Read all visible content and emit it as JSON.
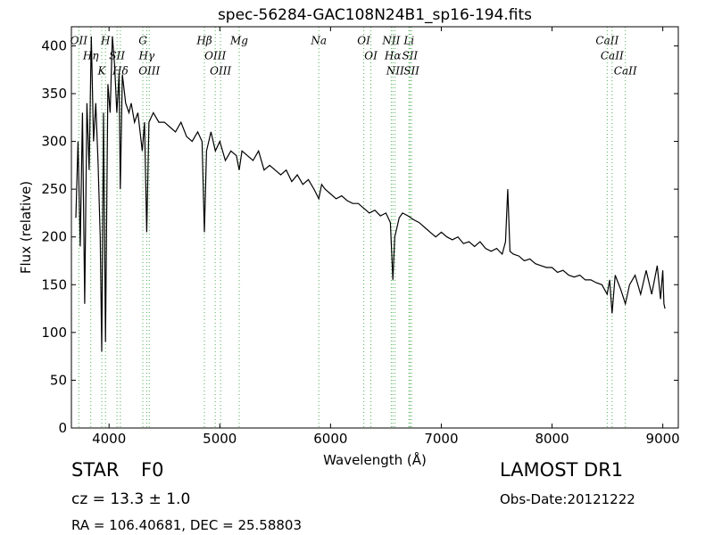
{
  "chart_data": {
    "type": "line",
    "title": "spec-56284-GAC108N24B1_sp16-194.fits",
    "x_label": "Wavelength (Å)",
    "y_label": "Flux (relative)",
    "xlim": [
      3660,
      9140
    ],
    "ylim": [
      0,
      420
    ],
    "xticks": [
      4000,
      5000,
      6000,
      7000,
      8000,
      9000
    ],
    "yticks": [
      0,
      50,
      100,
      150,
      200,
      250,
      300,
      350,
      400
    ],
    "x": [
      3700,
      3720,
      3740,
      3760,
      3780,
      3800,
      3820,
      3840,
      3860,
      3880,
      3900,
      3920,
      3934,
      3950,
      3968,
      3990,
      4010,
      4030,
      4050,
      4070,
      4090,
      4102,
      4120,
      4150,
      4180,
      4200,
      4230,
      4260,
      4300,
      4320,
      4340,
      4360,
      4400,
      4450,
      4500,
      4550,
      4600,
      4650,
      4700,
      4750,
      4800,
      4840,
      4861,
      4880,
      4920,
      4960,
      5000,
      5050,
      5100,
      5150,
      5175,
      5200,
      5250,
      5300,
      5350,
      5400,
      5450,
      5500,
      5550,
      5600,
      5650,
      5700,
      5750,
      5800,
      5850,
      5894,
      5920,
      5950,
      6000,
      6050,
      6100,
      6150,
      6200,
      6250,
      6300,
      6350,
      6400,
      6450,
      6500,
      6540,
      6563,
      6580,
      6620,
      6650,
      6700,
      6750,
      6800,
      6850,
      6900,
      6950,
      7000,
      7050,
      7100,
      7150,
      7200,
      7250,
      7300,
      7350,
      7400,
      7450,
      7500,
      7550,
      7580,
      7600,
      7620,
      7650,
      7700,
      7750,
      7800,
      7850,
      7900,
      7950,
      8000,
      8050,
      8100,
      8150,
      8200,
      8250,
      8300,
      8350,
      8400,
      8450,
      8498,
      8520,
      8542,
      8570,
      8620,
      8662,
      8700,
      8750,
      8800,
      8850,
      8900,
      8950,
      8980,
      9000,
      9010,
      9020
    ],
    "series": [
      {
        "color": "#000000",
        "values": [
          220,
          300,
          190,
          330,
          130,
          340,
          270,
          410,
          300,
          340,
          280,
          200,
          80,
          330,
          90,
          360,
          330,
          410,
          380,
          330,
          370,
          250,
          370,
          340,
          330,
          340,
          320,
          330,
          290,
          320,
          205,
          320,
          330,
          320,
          320,
          315,
          310,
          320,
          305,
          300,
          310,
          300,
          205,
          290,
          310,
          290,
          300,
          280,
          290,
          285,
          270,
          290,
          285,
          280,
          290,
          270,
          275,
          270,
          265,
          270,
          258,
          265,
          255,
          260,
          250,
          240,
          255,
          250,
          245,
          240,
          243,
          238,
          235,
          235,
          230,
          225,
          228,
          222,
          225,
          215,
          155,
          200,
          220,
          225,
          222,
          218,
          215,
          210,
          205,
          200,
          205,
          200,
          197,
          200,
          193,
          195,
          190,
          195,
          188,
          185,
          188,
          182,
          195,
          250,
          185,
          182,
          180,
          175,
          177,
          172,
          170,
          168,
          168,
          163,
          165,
          160,
          158,
          160,
          155,
          155,
          152,
          150,
          140,
          155,
          120,
          160,
          145,
          130,
          150,
          160,
          140,
          165,
          140,
          170,
          135,
          165,
          130,
          125
        ]
      }
    ],
    "marker_color": "#4caf50",
    "lines": [
      {
        "label": "OII",
        "x": 3727
      },
      {
        "label": "Hη",
        "x": 3835
      },
      {
        "label": "K",
        "x": 3934
      },
      {
        "label": "H",
        "x": 3968
      },
      {
        "label": "SII",
        "x": 4072
      },
      {
        "label": "Hδ",
        "x": 4102
      },
      {
        "label": "G",
        "x": 4305
      },
      {
        "label": "Hγ",
        "x": 4340
      },
      {
        "label": "OIII",
        "x": 4363
      },
      {
        "label": "Hβ",
        "x": 4861
      },
      {
        "label": "OIII",
        "x": 4959
      },
      {
        "label": "OIII",
        "x": 5007
      },
      {
        "label": "Mg",
        "x": 5175
      },
      {
        "label": "Na",
        "x": 5894
      },
      {
        "label": "OI",
        "x": 6300
      },
      {
        "label": "OI",
        "x": 6364
      },
      {
        "label": "NII",
        "x": 6548
      },
      {
        "label": "Hα",
        "x": 6563
      },
      {
        "label": "NII",
        "x": 6583
      },
      {
        "label": "Li",
        "x": 6708
      },
      {
        "label": "SII",
        "x": 6717
      },
      {
        "label": "SII",
        "x": 6731
      },
      {
        "label": "CaII",
        "x": 8498
      },
      {
        "label": "CaII",
        "x": 8542
      },
      {
        "label": "CaII",
        "x": 8662
      }
    ],
    "object_class": "STAR",
    "subclass": "F0",
    "redshift": "cz = 13.3 ± 1.0",
    "coordinates": "RA = 106.40681, DEC = 25.58803",
    "survey": "LAMOST DR1",
    "obs_date": "Obs-Date:20121222"
  }
}
